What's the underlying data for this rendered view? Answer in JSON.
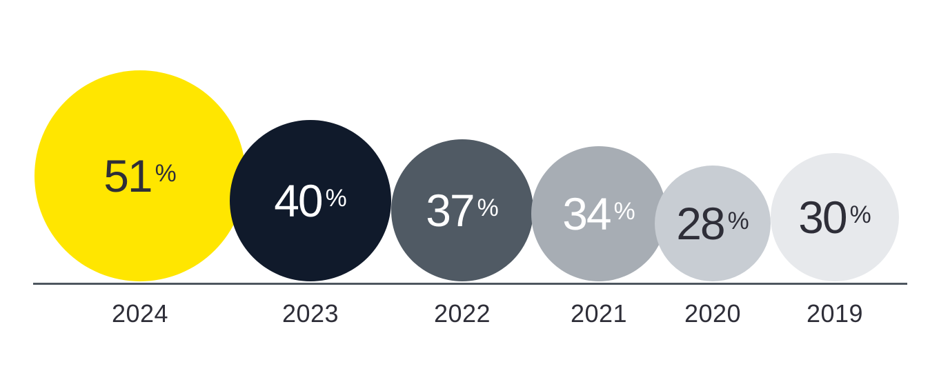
{
  "chart_data": {
    "type": "bubble",
    "categories": [
      "2024",
      "2023",
      "2022",
      "2021",
      "2020",
      "2019"
    ],
    "values": [
      51,
      40,
      37,
      34,
      28,
      30
    ],
    "unit": "%",
    "items": [
      {
        "year": "2024",
        "value": "51",
        "unit": "%",
        "color": "#FFE600",
        "text_color": "#2E2E38"
      },
      {
        "year": "2023",
        "value": "40",
        "unit": "%",
        "color": "#101A2B",
        "text_color": "#FFFFFF"
      },
      {
        "year": "2022",
        "value": "37",
        "unit": "%",
        "color": "#505A64",
        "text_color": "#FFFFFF"
      },
      {
        "year": "2021",
        "value": "34",
        "unit": "%",
        "color": "#A7ADB4",
        "text_color": "#FFFFFF"
      },
      {
        "year": "2020",
        "value": "28",
        "unit": "%",
        "color": "#C8CDD3",
        "text_color": "#2E2E38"
      },
      {
        "year": "2019",
        "value": "30",
        "unit": "%",
        "color": "#E7E9EC",
        "text_color": "#2E2E38"
      }
    ],
    "axis": {
      "baseline_color": "#4D565F",
      "label_color": "#2E2E38"
    },
    "layout_hints": {
      "baseline": "horizontal line under bubbles",
      "order": "left-to-right descending year",
      "size_encoding": "bubble radius proportional to value"
    }
  }
}
